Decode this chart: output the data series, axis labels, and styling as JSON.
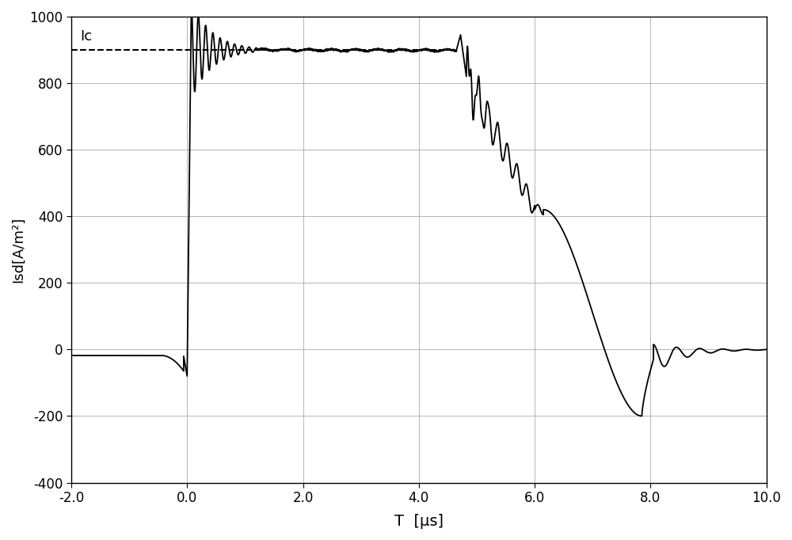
{
  "title": "",
  "xlabel": "T  [μs]",
  "ylabel": "Isd[A/m²]",
  "xlim": [
    -2.0,
    10.0
  ],
  "ylim": [
    -400,
    1000
  ],
  "xticks": [
    -2.0,
    0.0,
    2.0,
    4.0,
    6.0,
    8.0,
    10.0
  ],
  "yticks": [
    -400,
    -200,
    0,
    200,
    400,
    600,
    800,
    1000
  ],
  "Ic_value": 900,
  "Ic_label": "Ic",
  "line_color": "#000000",
  "dashed_color": "#000000",
  "background_color": "#ffffff",
  "figsize": [
    10.0,
    6.82
  ],
  "dpi": 100
}
